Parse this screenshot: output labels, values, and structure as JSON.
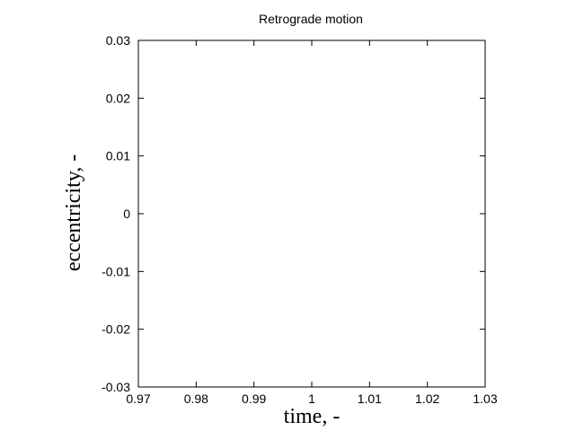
{
  "chart_data": {
    "type": "line",
    "title": "Retrograde motion",
    "xlabel": "time, -",
    "ylabel": "eccentricity, -",
    "xlim": [
      0.97,
      1.03
    ],
    "ylim": [
      -0.03,
      0.03
    ],
    "x_ticks": [
      0.97,
      0.98,
      0.99,
      1,
      1.01,
      1.02,
      1.03
    ],
    "x_tick_labels": [
      "0.97",
      "0.98",
      "0.99",
      "1",
      "1.01",
      "1.02",
      "1.03"
    ],
    "y_ticks": [
      0.03,
      0.02,
      0.01,
      0,
      -0.01,
      -0.02,
      -0.03
    ],
    "y_tick_labels": [
      "0.03",
      "0.02",
      "0.01",
      "0",
      "-0.01",
      "-0.02",
      "-0.03"
    ],
    "grid": false,
    "legend": "none",
    "series": [],
    "colors": {
      "axis": "#000000",
      "background": "#ffffff"
    }
  }
}
